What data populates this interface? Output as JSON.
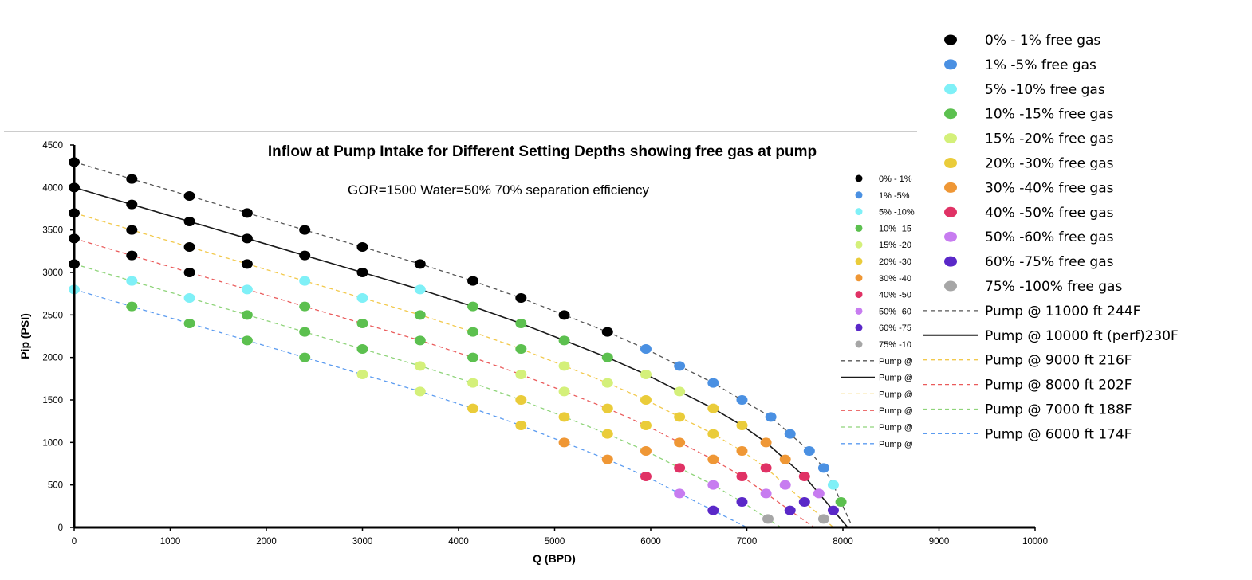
{
  "chart_data": {
    "type": "scatter",
    "title": "Inflow at Pump Intake for Different Setting Depths showing free gas at pump",
    "subtitle": "GOR=1500 Water=50% 70% separation efficiency",
    "xlabel": "Q (BPD)",
    "ylabel": "Pip (PSI)",
    "xlim": [
      0,
      10000
    ],
    "ylim": [
      0,
      4500
    ],
    "x_ticks": [
      "0",
      "1000",
      "2000",
      "3000",
      "4000",
      "5000",
      "6000",
      "7000",
      "8000",
      "9000",
      "10000"
    ],
    "y_ticks": [
      "0",
      "500",
      "1000",
      "1500",
      "2000",
      "2500",
      "3000",
      "3500",
      "4000",
      "4500"
    ],
    "grid": false,
    "legend_position": "right",
    "small_legend_labels": [
      "0% - 1%",
      "1% -5%",
      "5% -10%",
      "10% -15",
      "15% -20",
      "20% -30",
      "30% -40",
      "40% -50",
      "50% -60",
      "60% -75",
      "75% -10",
      "Pump @",
      "Pump @",
      "Pump @",
      "Pump @",
      "Pump @",
      "Pump @"
    ],
    "gas_categories": [
      {
        "name": "0% - 1% free gas",
        "color": "#000000"
      },
      {
        "name": "1% -5% free gas",
        "color": "#4a90e2"
      },
      {
        "name": "5% -10% free gas",
        "color": "#7ff0f7"
      },
      {
        "name": "10% -15% free gas",
        "color": "#5cc04f"
      },
      {
        "name": "15% -20% free gas",
        "color": "#d4f07a"
      },
      {
        "name": "20% -30% free gas",
        "color": "#eacc3a"
      },
      {
        "name": "30% -40% free gas",
        "color": "#ef9735"
      },
      {
        "name": "40% -50% free gas",
        "color": "#e03265"
      },
      {
        "name": "50% -60% free gas",
        "color": "#c77cf0"
      },
      {
        "name": "60% -75% free gas",
        "color": "#5a28c8"
      },
      {
        "name": "75% -100% free gas",
        "color": "#a6a6a6"
      }
    ],
    "series": [
      {
        "name": "Pump @ 11000 ft 244F",
        "color": "#555555",
        "dash": "dashed",
        "x": [
          0,
          600,
          1200,
          1800,
          2400,
          3000,
          3600,
          4150,
          4650,
          5100,
          5550,
          5950,
          6300,
          6650,
          6950,
          7250,
          7450,
          7650,
          7800,
          7900,
          7980
        ],
        "y": [
          4300,
          4100,
          3900,
          3700,
          3500,
          3300,
          3100,
          2900,
          2700,
          2500,
          2300,
          2100,
          1900,
          1700,
          1500,
          1300,
          1100,
          900,
          700,
          500,
          300
        ],
        "gas": [
          0,
          0,
          0,
          0,
          0,
          0,
          0,
          0,
          0,
          0,
          0,
          1,
          1,
          1,
          1,
          1,
          1,
          1,
          1,
          2,
          3
        ]
      },
      {
        "name": "Pump @ 10000 ft (perf)230F",
        "color": "#1a1a1a",
        "dash": "solid",
        "x": [
          0,
          600,
          1200,
          1800,
          2400,
          3000,
          3600,
          4150,
          4650,
          5100,
          5550,
          5950,
          6300,
          6650,
          6950,
          7200,
          7400,
          7600,
          7750,
          7900
        ],
        "y": [
          4000,
          3800,
          3600,
          3400,
          3200,
          3000,
          2800,
          2600,
          2400,
          2200,
          2000,
          1800,
          1600,
          1400,
          1200,
          1000,
          800,
          600,
          400,
          200
        ],
        "gas": [
          0,
          0,
          0,
          0,
          0,
          0,
          2,
          3,
          3,
          3,
          3,
          4,
          4,
          5,
          5,
          6,
          6,
          7,
          8,
          9
        ]
      },
      {
        "name": "Pump @ 9000 ft 216F",
        "color": "#f2c94c",
        "dash": "dashed",
        "x": [
          0,
          600,
          1200,
          1800,
          2400,
          3000,
          3600,
          4150,
          4650,
          5100,
          5550,
          5950,
          6300,
          6650,
          6950,
          7200,
          7400,
          7600,
          7800
        ],
        "y": [
          3700,
          3500,
          3300,
          3100,
          2900,
          2700,
          2500,
          2300,
          2100,
          1900,
          1700,
          1500,
          1300,
          1100,
          900,
          700,
          500,
          300,
          100
        ],
        "gas": [
          0,
          0,
          0,
          0,
          2,
          2,
          3,
          3,
          3,
          4,
          4,
          5,
          5,
          5,
          6,
          7,
          8,
          9,
          10
        ]
      },
      {
        "name": "Pump @ 8000 ft 202F",
        "color": "#ea5b5b",
        "dash": "dashed",
        "x": [
          0,
          600,
          1200,
          1800,
          2400,
          3000,
          3600,
          4150,
          4650,
          5100,
          5550,
          5950,
          6300,
          6650,
          6950,
          7200,
          7450
        ],
        "y": [
          3400,
          3200,
          3000,
          2800,
          2600,
          2400,
          2200,
          2000,
          1800,
          1600,
          1400,
          1200,
          1000,
          800,
          600,
          400,
          200
        ],
        "gas": [
          0,
          0,
          0,
          2,
          3,
          3,
          3,
          3,
          4,
          4,
          5,
          5,
          6,
          6,
          7,
          8,
          9
        ]
      },
      {
        "name": "Pump @ 7000 ft 188F",
        "color": "#8fd47a",
        "dash": "dashed",
        "x": [
          0,
          600,
          1200,
          1800,
          2400,
          3000,
          3600,
          4150,
          4650,
          5100,
          5550,
          5950,
          6300,
          6650,
          6950,
          7220
        ],
        "y": [
          3100,
          2900,
          2700,
          2500,
          2300,
          2100,
          1900,
          1700,
          1500,
          1300,
          1100,
          900,
          700,
          500,
          300,
          100
        ],
        "gas": [
          0,
          2,
          2,
          3,
          3,
          3,
          4,
          4,
          5,
          5,
          5,
          6,
          7,
          8,
          9,
          10
        ]
      },
      {
        "name": "Pump @ 6000 ft 174F",
        "color": "#5b9bf0",
        "dash": "dashed",
        "x": [
          0,
          600,
          1200,
          1800,
          2400,
          3000,
          3600,
          4150,
          4650,
          5100,
          5550,
          5950,
          6300,
          6650
        ],
        "y": [
          2800,
          2600,
          2400,
          2200,
          2000,
          1800,
          1600,
          1400,
          1200,
          1000,
          800,
          600,
          400,
          200
        ],
        "gas": [
          2,
          3,
          3,
          3,
          3,
          4,
          4,
          5,
          5,
          6,
          6,
          7,
          8,
          9
        ]
      }
    ]
  }
}
